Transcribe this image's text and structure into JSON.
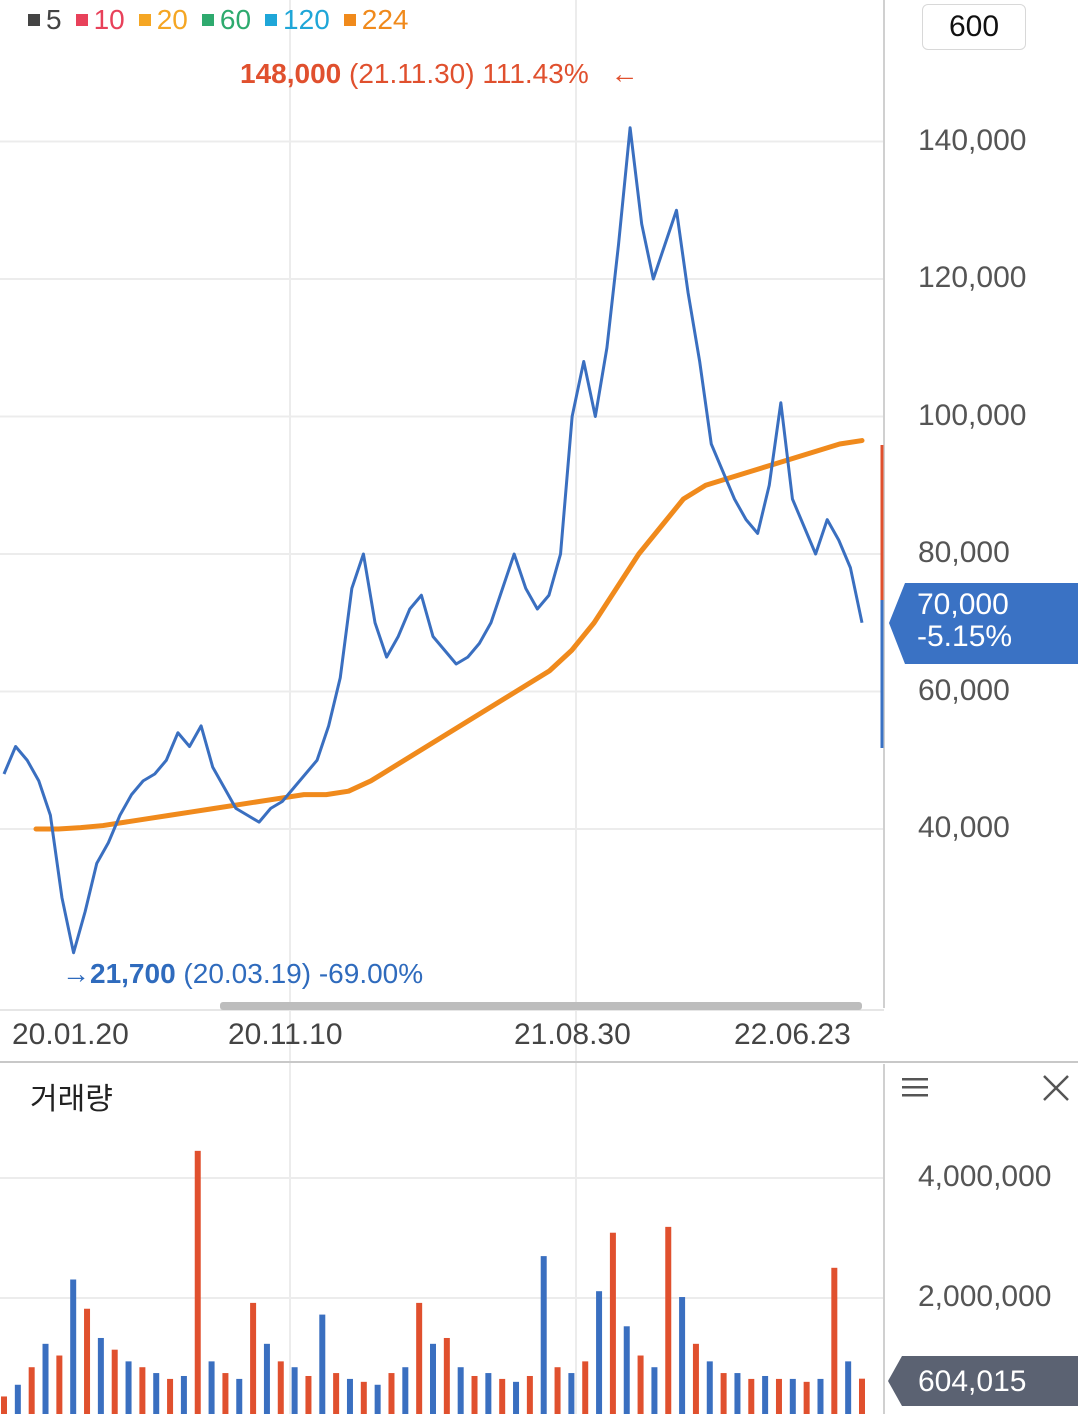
{
  "legend": [
    {
      "label": "5",
      "color": "#444444"
    },
    {
      "label": "10",
      "color": "#e8415a"
    },
    {
      "label": "20",
      "color": "#f5a623"
    },
    {
      "label": "60",
      "color": "#2eaa6e"
    },
    {
      "label": "120",
      "color": "#1fa6d8"
    },
    {
      "label": "224",
      "color": "#f08a1c"
    }
  ],
  "period_button": "600",
  "high_annotation": {
    "price": "148,000",
    "date": "(21.11.30)",
    "pct": "111.43%",
    "arrow": "←",
    "color": "#e0502e"
  },
  "low_annotation": {
    "arrow": "→",
    "price": "21,700",
    "date": "(20.03.19)",
    "pct": "-69.00%",
    "color": "#2f6bbd"
  },
  "current_price": {
    "price": "70,000",
    "change": "-5.15%",
    "color": "#3a72c4"
  },
  "volume": {
    "title": "거래량",
    "current": "604,015",
    "menu_icon": "hamburger-icon",
    "close_icon": "close-icon",
    "label_color": "#5b6272"
  },
  "chart_data": [
    {
      "type": "line",
      "title": "",
      "x_tick_labels": [
        "20.01.20",
        "20.11.10",
        "21.08.30",
        "22.06.23"
      ],
      "y_tick_labels": [
        "140,000",
        "120,000",
        "100,000",
        "80,000",
        "60,000",
        "40,000"
      ],
      "ylim": [
        20000,
        150000
      ],
      "grid": true,
      "legend_position": "top-left",
      "series": [
        {
          "name": "5",
          "color": "#444444",
          "values": [
            48000,
            52000,
            50000,
            47000,
            42000,
            30000,
            22000,
            28000,
            35000,
            38000,
            42000,
            45000,
            47000,
            48000,
            50000,
            54000,
            52000,
            55000,
            49000,
            46000,
            43000,
            42000,
            41000,
            43000,
            44000,
            46000,
            48000,
            50000,
            55000,
            62000,
            75000,
            80000,
            70000,
            65000,
            68000,
            72000,
            74000,
            68000,
            66000,
            64000,
            65000,
            67000,
            70000,
            75000,
            80000,
            75000,
            72000,
            74000,
            80000,
            100000,
            108000,
            100000,
            110000,
            125000,
            142000,
            128000,
            120000,
            125000,
            130000,
            118000,
            108000,
            96000,
            92000,
            88000,
            85000,
            83000,
            90000,
            102000,
            88000,
            84000,
            80000,
            85000,
            82000,
            78000,
            70000
          ]
        },
        {
          "name": "224",
          "color": "#f08a1c",
          "values": [
            40000,
            40000,
            40200,
            40500,
            41000,
            41500,
            42000,
            42500,
            43000,
            43500,
            44000,
            44500,
            45000,
            45000,
            45500,
            47000,
            49000,
            51000,
            53000,
            55000,
            57000,
            59000,
            61000,
            63000,
            66000,
            70000,
            75000,
            80000,
            84000,
            88000,
            90000,
            91000,
            92000,
            93000,
            94000,
            95000,
            96000,
            96500
          ]
        }
      ]
    },
    {
      "type": "bar",
      "title": "거래량",
      "y_tick_labels": [
        "4,000,000",
        "2,000,000"
      ],
      "ylim": [
        0,
        4600000
      ],
      "values": [
        300000,
        500000,
        800000,
        1200000,
        1000000,
        2300000,
        1800000,
        1300000,
        1100000,
        900000,
        800000,
        700000,
        600000,
        650000,
        4500000,
        900000,
        700000,
        600000,
        1900000,
        1200000,
        900000,
        800000,
        650000,
        1700000,
        700000,
        600000,
        550000,
        500000,
        700000,
        800000,
        1900000,
        1200000,
        1300000,
        800000,
        650000,
        700000,
        600000,
        550000,
        650000,
        2700000,
        800000,
        700000,
        900000,
        2100000,
        3100000,
        1500000,
        1000000,
        800000,
        3200000,
        2000000,
        1200000,
        900000,
        700000,
        700000,
        600000,
        650000,
        600000,
        600000,
        550000,
        600000,
        2500000,
        900000,
        604015
      ]
    }
  ]
}
